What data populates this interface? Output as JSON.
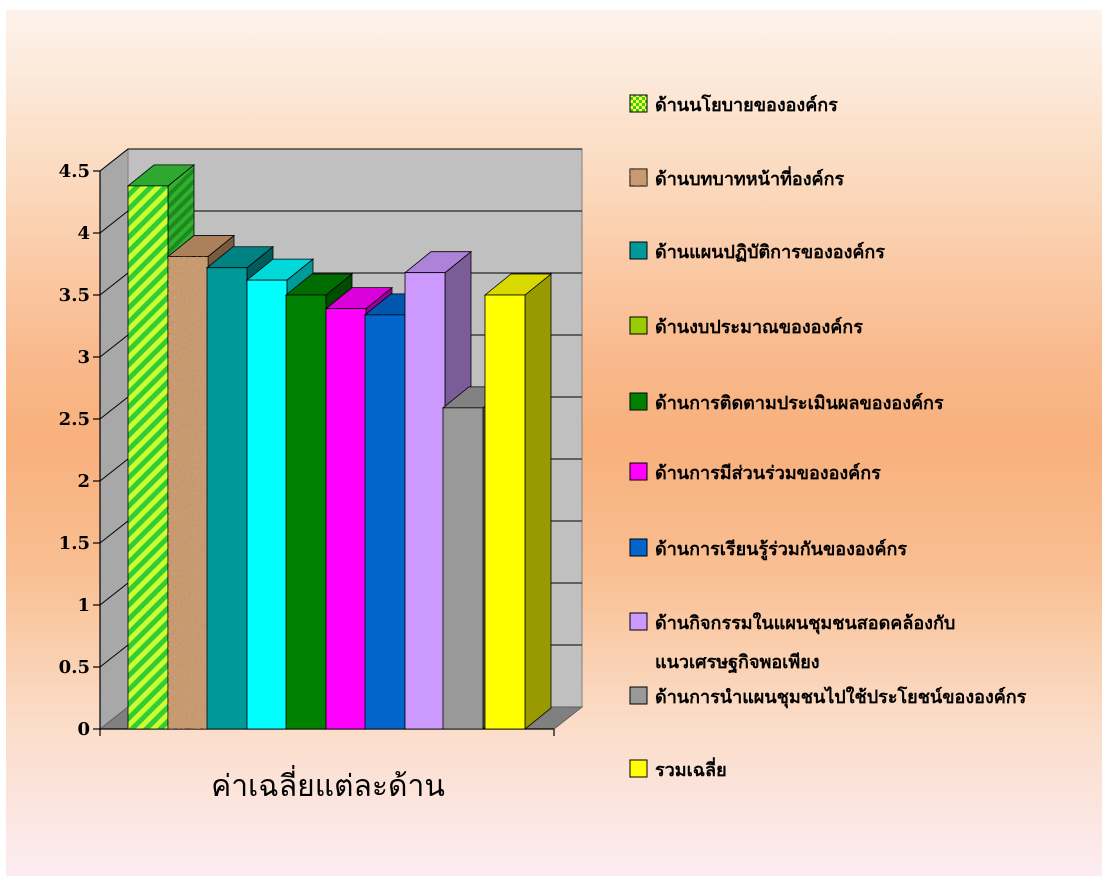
{
  "chart_data": {
    "type": "bar",
    "title": "",
    "xlabel": "ค่าเฉลี่ยแต่ละด้าน",
    "ylabel": "",
    "ylim": [
      0,
      4.5
    ],
    "y_ticks": [
      "0",
      "0.5",
      "1",
      "1.5",
      "2",
      "2.5",
      "3",
      "3.5",
      "4",
      "4.5"
    ],
    "grid": true,
    "legend_position": "right",
    "series": [
      {
        "name": "ด้านนโยบายขององค์กร",
        "value": 4.38,
        "color": "#33cc33",
        "pattern": "checker-hatch"
      },
      {
        "name": "ด้านบทบาทหน้าที่องค์กร",
        "value": 3.81,
        "color": "#c9976b",
        "pattern": "texture"
      },
      {
        "name": "ด้านแผนปฏิบัติการขององค์กร",
        "value": 3.72,
        "color": "#009999"
      },
      {
        "name": "ด้านงบประมาณขององค์กร",
        "value": 3.62,
        "color": "#00ffff",
        "legend_color": "#99cc00"
      },
      {
        "name": "ด้านการติดตามประเมินผลขององค์กร",
        "value": 3.5,
        "color": "#008000"
      },
      {
        "name": "ด้านการมีส่วนร่วมขององค์กร",
        "value": 3.39,
        "color": "#ff00ff"
      },
      {
        "name": "ด้านการเรียนรู้ร่วมกันขององค์กร",
        "value": 3.34,
        "color": "#0066cc"
      },
      {
        "name": "ด้านกิจกรรมในแผนชุมชนสอดคล้องกับแนวเศรษฐกิจพอเพียง",
        "name_lines": [
          "ด้านกิจกรรมในแผนชุมชนสอดคล้องกับ",
          "แนวเศรษฐกิจพอเพียง"
        ],
        "value": 3.68,
        "color": "#cc99ff"
      },
      {
        "name": "ด้านการนำแผนชุมชนไปใช้ประโยชน์ขององค์กร",
        "value": 2.59,
        "color": "#999999"
      },
      {
        "name": "รวมเฉลี่ย",
        "value": 3.5,
        "color": "#ffff00"
      }
    ]
  }
}
